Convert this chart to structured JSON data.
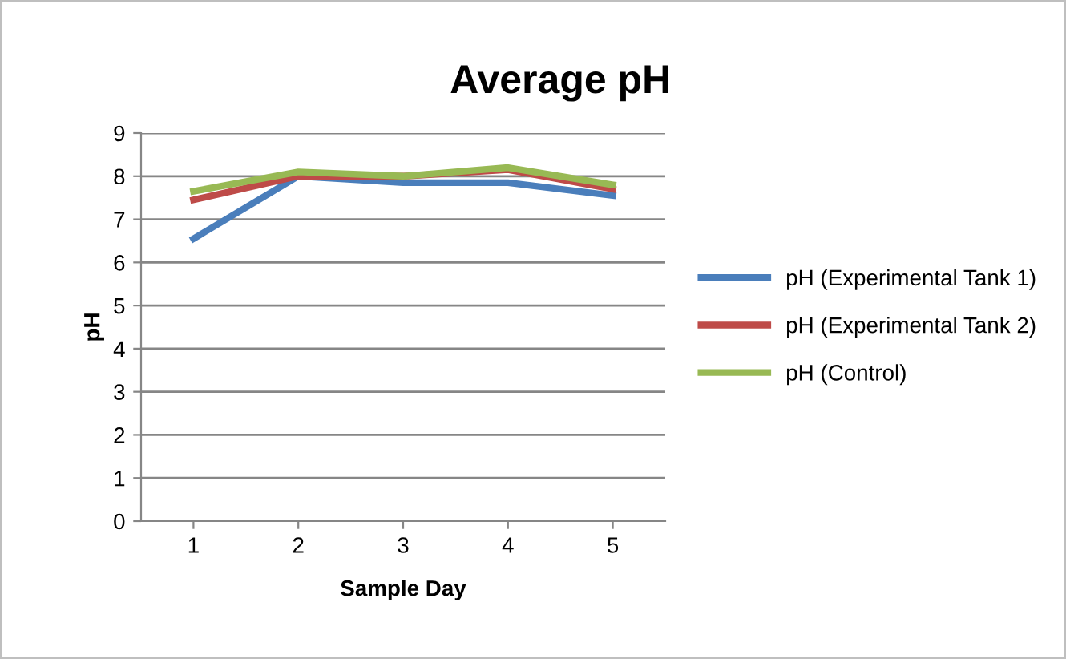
{
  "chart_data": {
    "type": "line",
    "title": "Average pH",
    "xlabel": "Sample Day",
    "ylabel": "pH",
    "categories": [
      "1",
      "2",
      "3",
      "4",
      "5"
    ],
    "series": [
      {
        "name": "pH (Experimental Tank 1)",
        "color": "#4a7ebb",
        "values": [
          6.55,
          8.0,
          7.85,
          7.85,
          7.55
        ]
      },
      {
        "name": "pH (Experimental Tank 2)",
        "color": "#be4b48",
        "values": [
          7.45,
          8.0,
          8.0,
          8.15,
          7.7
        ]
      },
      {
        "name": "pH (Control)",
        "color": "#98b954",
        "values": [
          7.65,
          8.1,
          8.0,
          8.2,
          7.8
        ]
      }
    ],
    "ylim": [
      0,
      9
    ],
    "yticks": [
      0,
      1,
      2,
      3,
      4,
      5,
      6,
      7,
      8,
      9
    ],
    "grid": "y",
    "legend": "right",
    "marker": "none",
    "line_style": "solid"
  }
}
